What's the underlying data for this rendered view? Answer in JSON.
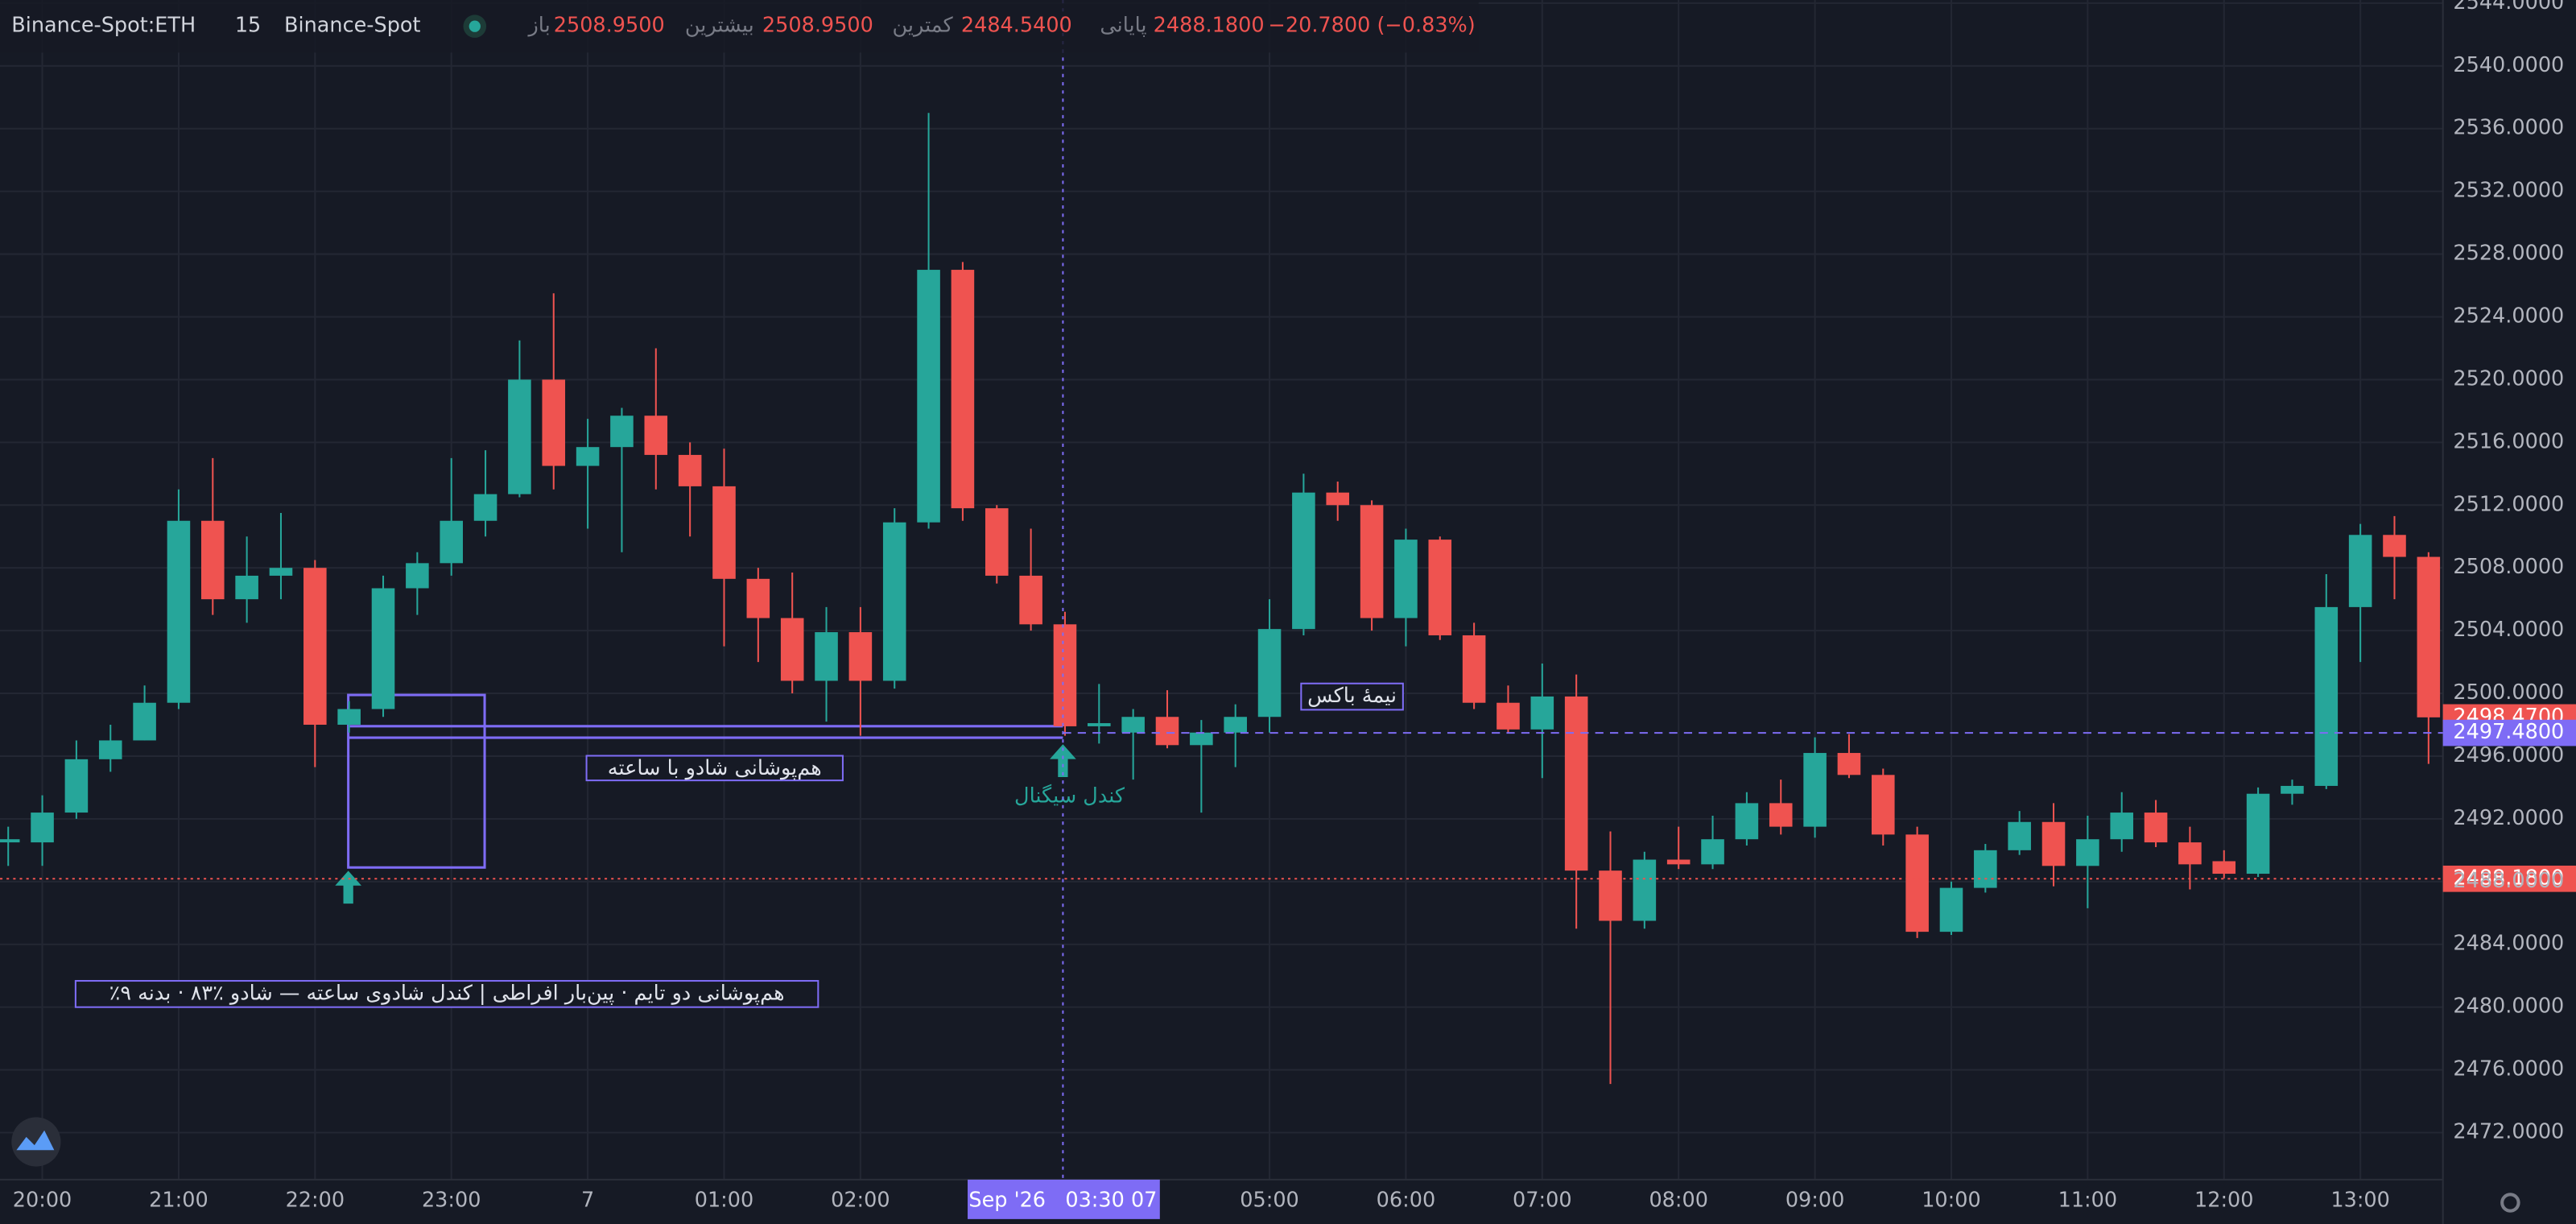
{
  "header": {
    "symbol": "Binance-Spot:ETH",
    "interval": "15",
    "exchange": "Binance-Spot",
    "ohlc": [
      {
        "label": "باز",
        "value": "2508.9500"
      },
      {
        "label": "بیشترین",
        "value": "2508.9500"
      },
      {
        "label": "کمترین",
        "value": "2484.5400"
      },
      {
        "label": "پایانی",
        "value": "2488.1800"
      }
    ],
    "change": "−20.7800 (−0.83%)"
  },
  "annotations": {
    "overlap": "هم‌پوشانی شادو با ساعته",
    "half_box": "نیمهٔ باکس",
    "signal": "کندل سیگنال",
    "note": "٪هم‌پوشانی دو تایم · پین‌بار افراطی | کندل شادوی ساعته — شادو ٪۸۳ · بدنه ۹"
  },
  "crosshair_label": "Sep '26   03:30 07",
  "chart_data": {
    "type": "candlestick",
    "up_color": "#26a69a",
    "down_color": "#ef5350",
    "grid": true,
    "categories": [
      null,
      "20:00",
      null,
      null,
      null,
      "21:00",
      null,
      null,
      null,
      "22:00",
      null,
      null,
      null,
      "23:00",
      null,
      null,
      null,
      "7",
      null,
      null,
      null,
      "01:00",
      null,
      null,
      null,
      "02:00",
      null,
      null,
      null,
      null,
      null,
      null,
      null,
      null,
      null,
      null,
      null,
      "05:00",
      null,
      null,
      null,
      "06:00",
      null,
      null,
      null,
      "07:00",
      null,
      null,
      null,
      "08:00",
      null,
      null,
      null,
      "09:00",
      null,
      null,
      null,
      "10:00",
      null,
      null,
      null,
      "11:00",
      null,
      null,
      null,
      "12:00",
      null,
      null,
      null,
      "13:00",
      null,
      null
    ],
    "open": [
      2490.5,
      2490.5,
      2492.4,
      2495.8,
      2497,
      2499.4,
      2511,
      2506,
      2507.5,
      2508,
      2498,
      2499,
      2506.7,
      2508.3,
      2511,
      2512.7,
      2520,
      2514.5,
      2515.7,
      2517.7,
      2515.2,
      2513.2,
      2507.3,
      2504.8,
      2500.8,
      2503.9,
      2500.8,
      2510.9,
      2527,
      2511.8,
      2507.5,
      2504.4,
      2497.9,
      2497.5,
      2498.5,
      2496.7,
      2497.5,
      2498.5,
      2504.1,
      2512.8,
      2512,
      2504.8,
      2509.8,
      2503.7,
      2499.4,
      2497.7,
      2499.8,
      2488.7,
      2485.5,
      2489.4,
      2489.1,
      2490.7,
      2493,
      2491.5,
      2496.2,
      2494.8,
      2491,
      2484.8,
      2487.6,
      2490,
      2491.8,
      2489,
      2490.7,
      2492.4,
      2490.5,
      2489.3,
      2488.5,
      2493.6,
      2494.1,
      2505.5,
      2510.1,
      2508.7
    ],
    "high": [
      2491.5,
      2493.5,
      2497,
      2498,
      2500.5,
      2513,
      2515,
      2510,
      2511.5,
      2508.5,
      2499.5,
      2507.5,
      2509,
      2515,
      2515.5,
      2522.5,
      2525.5,
      2517.5,
      2518.2,
      2522,
      2516,
      2515.6,
      2508,
      2507.7,
      2505.5,
      2505.5,
      2511.8,
      2537,
      2527.5,
      2512,
      2510.5,
      2505.2,
      2500.6,
      2499,
      2500.2,
      2498.3,
      2499.3,
      2506,
      2514,
      2513.5,
      2512.3,
      2510.5,
      2510,
      2504.5,
      2500.5,
      2501.9,
      2501.2,
      2491.2,
      2489.9,
      2491.5,
      2492.2,
      2493.7,
      2494.5,
      2497.2,
      2497.4,
      2495.2,
      2491.5,
      2488,
      2490.4,
      2492.5,
      2493,
      2492.2,
      2493.7,
      2493.2,
      2491.5,
      2490,
      2494,
      2494.5,
      2507.6,
      2510.8,
      2511.3,
      2509
    ],
    "low": [
      2489,
      2489,
      2492,
      2495,
      2497,
      2499,
      2505,
      2504.5,
      2506,
      2495.3,
      2497.5,
      2498.5,
      2505,
      2507.5,
      2510,
      2512.5,
      2513,
      2510.5,
      2509,
      2513,
      2510,
      2503,
      2502,
      2500,
      2498.2,
      2497.3,
      2500.3,
      2510.5,
      2511,
      2507,
      2504,
      2497.3,
      2496.8,
      2494.5,
      2496.5,
      2492.4,
      2495.3,
      2497.5,
      2503.7,
      2511,
      2504,
      2503,
      2503.4,
      2499,
      2497.5,
      2494.6,
      2485,
      2475.1,
      2485,
      2488.8,
      2488.8,
      2490.3,
      2491,
      2490.8,
      2494.6,
      2490.3,
      2484.4,
      2484.6,
      2487.3,
      2489.7,
      2487.7,
      2486.3,
      2489.9,
      2490.2,
      2487.5,
      2488.2,
      2488.3,
      2492.9,
      2493.9,
      2502,
      2506,
      2495.5
    ],
    "close": [
      2490.7,
      2492.4,
      2495.8,
      2497,
      2499.4,
      2511,
      2506,
      2507.5,
      2508,
      2498,
      2499,
      2506.7,
      2508.3,
      2511,
      2512.7,
      2520,
      2514.5,
      2515.7,
      2517.7,
      2515.2,
      2513.2,
      2507.3,
      2504.8,
      2500.8,
      2503.9,
      2500.8,
      2510.9,
      2527,
      2511.8,
      2507.5,
      2504.4,
      2497.9,
      2498.1,
      2498.5,
      2496.7,
      2497.5,
      2498.5,
      2504.1,
      2512.8,
      2512,
      2504.8,
      2509.8,
      2503.7,
      2499.4,
      2497.7,
      2499.8,
      2488.7,
      2485.5,
      2489.4,
      2489.1,
      2490.7,
      2493,
      2491.5,
      2496.2,
      2494.8,
      2491,
      2484.8,
      2487.6,
      2490,
      2491.8,
      2489,
      2490.7,
      2492.4,
      2490.5,
      2489.1,
      2488.5,
      2493.6,
      2494.1,
      2505.5,
      2510.1,
      2508.7,
      2498.47
    ],
    "ylim": [
      2469,
      2544.2
    ],
    "yticks": [
      {
        "value": 2472,
        "label": "2472.0000"
      },
      {
        "value": 2476,
        "label": "2476.0000"
      },
      {
        "value": 2480,
        "label": "2480.0000"
      },
      {
        "value": 2484,
        "label": "2484.0000"
      },
      {
        "value": 2488,
        "label": "2488.0000"
      },
      {
        "value": 2492,
        "label": "2492.0000"
      },
      {
        "value": 2496,
        "label": "2496.0000"
      },
      {
        "value": 2500,
        "label": "2500.0000"
      },
      {
        "value": 2504,
        "label": "2504.0000"
      },
      {
        "value": 2508,
        "label": "2508.0000"
      },
      {
        "value": 2512,
        "label": "2512.0000"
      },
      {
        "value": 2516,
        "label": "2516.0000"
      },
      {
        "value": 2520,
        "label": "2520.0000"
      },
      {
        "value": 2524,
        "label": "2524.0000"
      },
      {
        "value": 2528,
        "label": "2528.0000"
      },
      {
        "value": 2532,
        "label": "2532.0000"
      },
      {
        "value": 2536,
        "label": "2536.0000"
      },
      {
        "value": 2540,
        "label": "2540.0000"
      },
      {
        "value": 2544,
        "label": "2544.0000"
      }
    ],
    "price_lines": [
      {
        "value": 2498.47,
        "label": "2498.4700",
        "color": "#ef5350",
        "line": "none"
      },
      {
        "value": 2497.48,
        "label": "2497.4800",
        "color": "#7e6cf5",
        "line": "dashed"
      },
      {
        "value": 2488.18,
        "label": "2488.1800",
        "color": "#ef5350",
        "line": "dotted"
      }
    ]
  }
}
